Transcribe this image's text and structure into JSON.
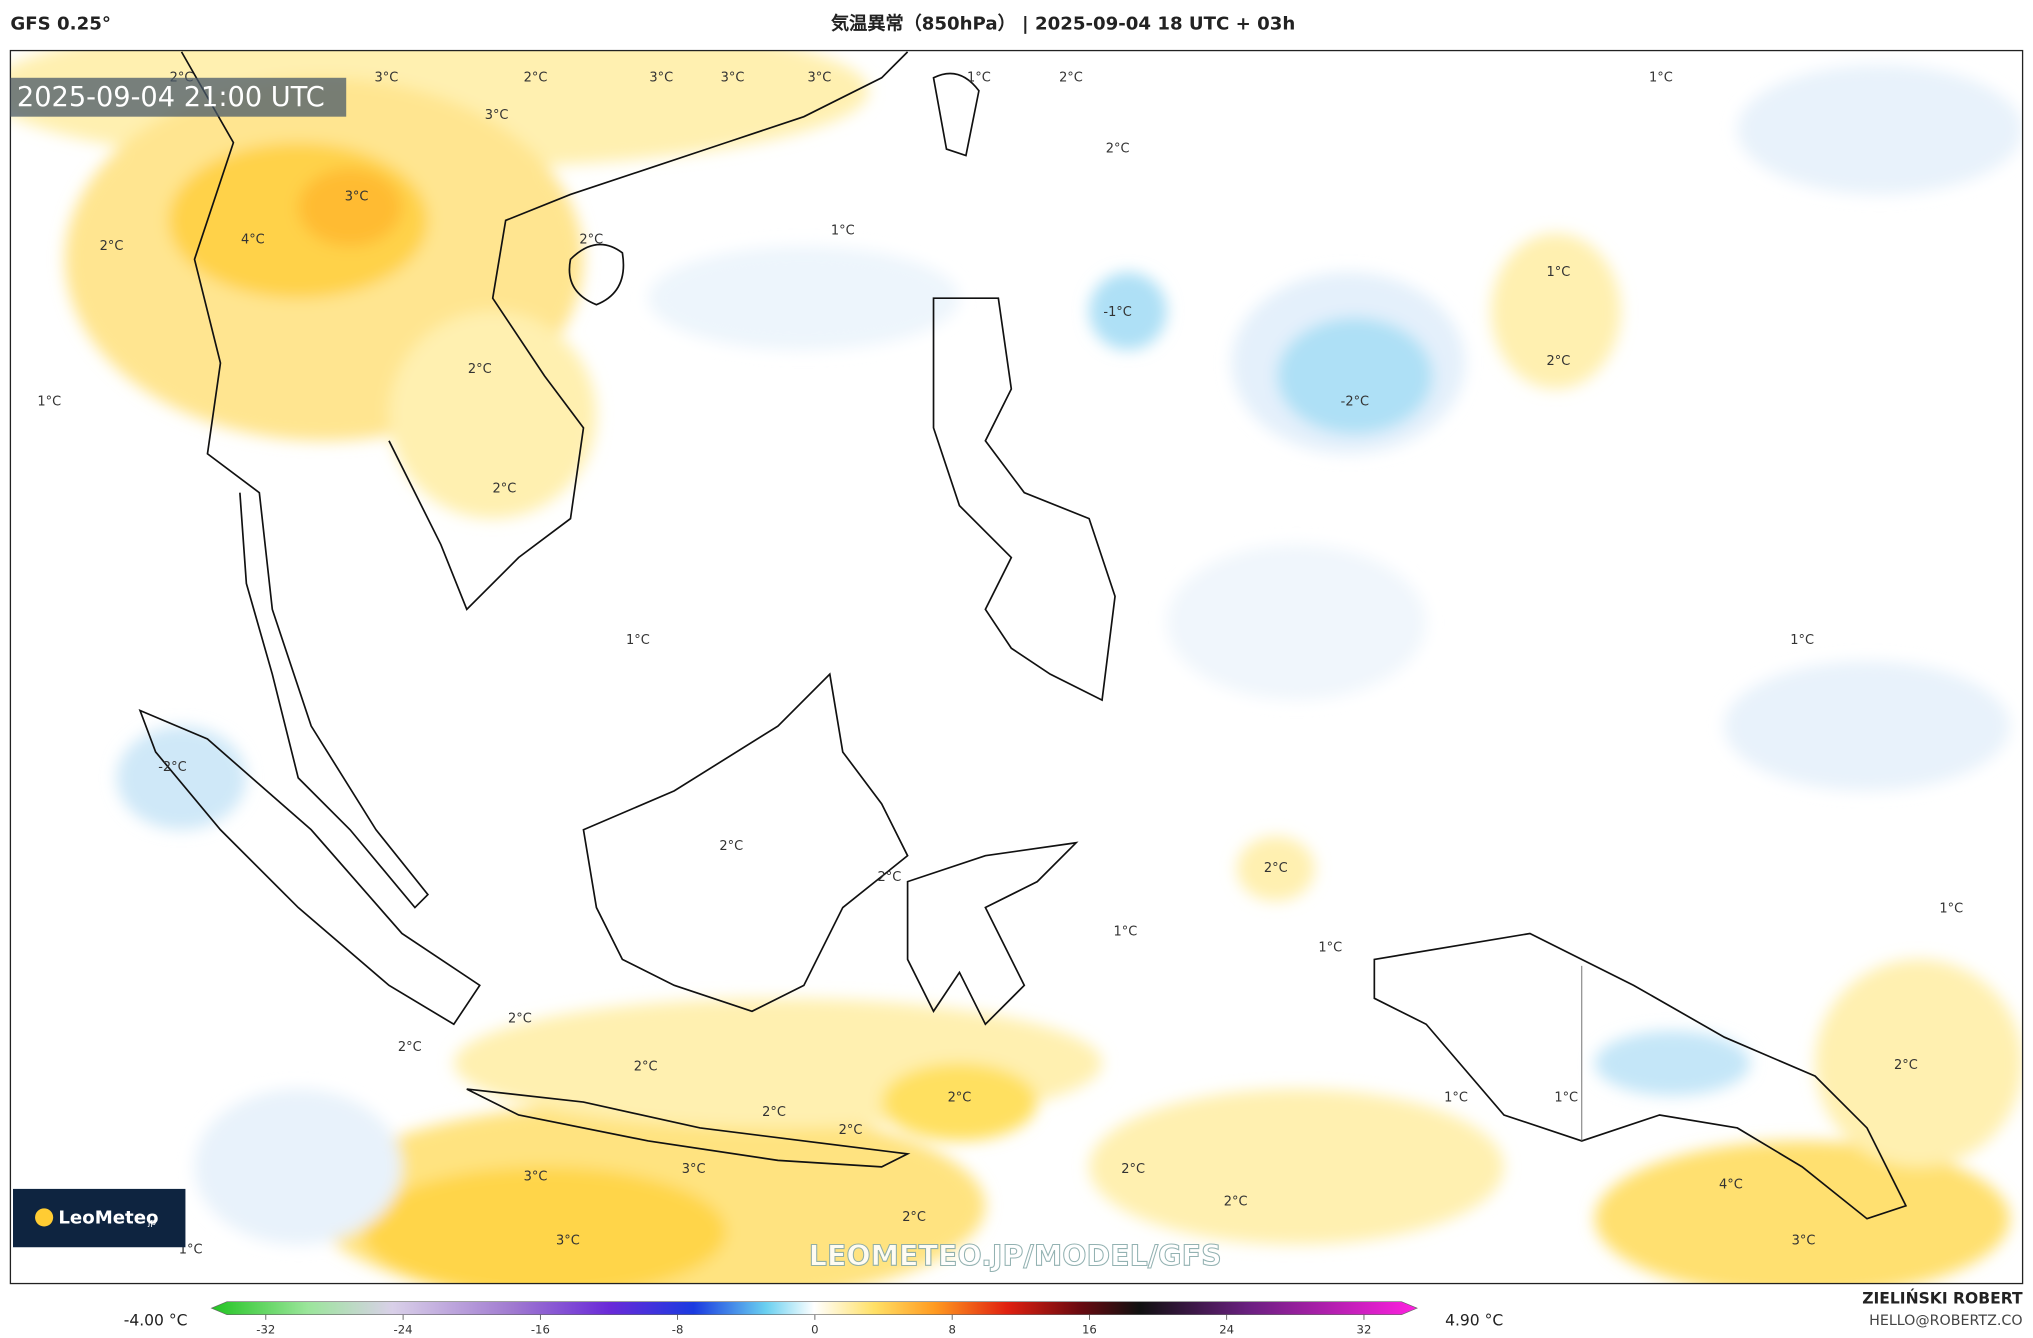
{
  "header": {
    "model": "GFS 0.25°",
    "title": "気温異常（850hPa） | 2025-09-04 18 UTC + 03h"
  },
  "timestamp": "2025-09-04 21:00 UTC",
  "map": {
    "contour_labels": [
      "3°C",
      "2°C",
      "3°C",
      "3°C",
      "3°C",
      "1°C",
      "2°C",
      "1°C",
      "3°C",
      "2°C",
      "2°C",
      "3°C",
      "4°C",
      "2°C",
      "2°C",
      "1°C",
      "1°C",
      "-1°C",
      "2°C",
      "-2°C",
      "1°C",
      "2°C",
      "2°C",
      "1°C",
      "1°C",
      "-2°C",
      "2°C",
      "2°C",
      "2°C",
      "1°C",
      "1°C",
      "1°C",
      "2°C",
      "2°C",
      "2°C",
      "2°C",
      "2°C",
      "2°C",
      "1°C",
      "1°C",
      "2°C",
      "3°C",
      "3°C",
      "2°C",
      "4°C",
      "2°C",
      "2°C",
      "3°C",
      "3°C",
      "1°C"
    ]
  },
  "watermark": "LEOMETEO.JP/MODEL/GFS",
  "logo": {
    "name": "LeoMeteo",
    "suffix": "jp"
  },
  "colorbar": {
    "min_label": "-4.00 °C",
    "max_label": "4.90 °C",
    "ticks": [
      -32,
      -24,
      -16,
      -8,
      0,
      8,
      16,
      24,
      32
    ]
  },
  "credit": {
    "author": "ZIELIŃSKI ROBERT",
    "email": "HELLO@ROBERTZ.CO"
  }
}
